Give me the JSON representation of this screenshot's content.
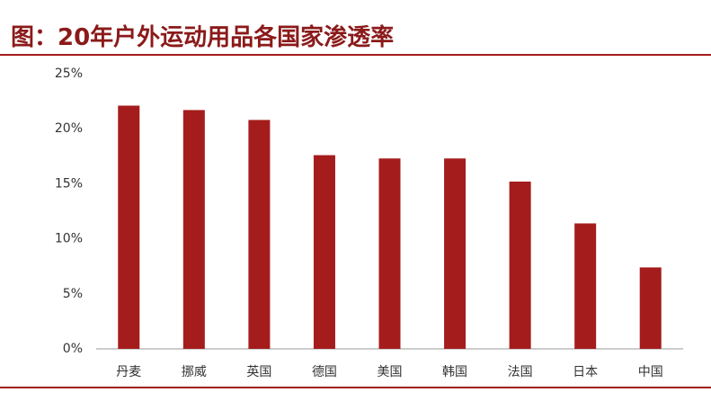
{
  "chart_data": {
    "type": "bar",
    "title": "图：20年户外运动用品各国家渗透率",
    "categories": [
      "丹麦",
      "挪威",
      "英国",
      "德国",
      "美国",
      "韩国",
      "法国",
      "日本",
      "中国"
    ],
    "values": [
      22.1,
      21.7,
      20.8,
      17.6,
      17.3,
      17.3,
      15.2,
      11.4,
      7.4
    ],
    "color": "#a51c1c",
    "ylim": [
      0,
      25
    ],
    "yticks": [
      {
        "value": 0,
        "label": "0%"
      },
      {
        "value": 5,
        "label": "5%"
      },
      {
        "value": 10,
        "label": "10%"
      },
      {
        "value": 15,
        "label": "15%"
      },
      {
        "value": 20,
        "label": "20%"
      },
      {
        "value": 25,
        "label": "25%"
      }
    ],
    "grid": false
  }
}
